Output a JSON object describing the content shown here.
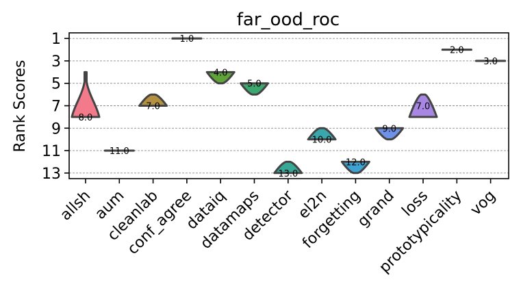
{
  "chart_data": {
    "type": "violin",
    "title": "far_ood_roc",
    "xlabel": "",
    "ylabel": "Rank Scores",
    "ylim": [
      13.5,
      0.5
    ],
    "yticks": [
      1,
      3,
      5,
      7,
      9,
      11,
      13
    ],
    "grid": "y-dashed",
    "categories": [
      "allsh",
      "aum",
      "cleanlab",
      "conf_agree",
      "dataiq",
      "datamaps",
      "detector",
      "el2n",
      "forgetting",
      "grand",
      "loss",
      "prototypicality",
      "vog"
    ],
    "series": [
      {
        "category": "allsh",
        "median": 8.0,
        "median_label": "8.0",
        "min": 4,
        "max": 8,
        "color": "#f37a8a"
      },
      {
        "category": "aum",
        "median": 11.0,
        "median_label": "11.0",
        "min": 11,
        "max": 11,
        "color": "#ce8a37"
      },
      {
        "category": "cleanlab",
        "median": 7.0,
        "median_label": "7.0",
        "min": 6,
        "max": 7,
        "color": "#b39140"
      },
      {
        "category": "conf_agree",
        "median": 1.0,
        "median_label": "1.0",
        "min": 1,
        "max": 1,
        "color": "#9b9a36"
      },
      {
        "category": "dataiq",
        "median": 4.0,
        "median_label": "4.0",
        "min": 4,
        "max": 5,
        "color": "#5fa339"
      },
      {
        "category": "datamaps",
        "median": 5.0,
        "median_label": "5.0",
        "min": 5,
        "max": 6,
        "color": "#3ea66f"
      },
      {
        "category": "detector",
        "median": 13.0,
        "median_label": "13.0",
        "min": 12,
        "max": 13,
        "color": "#38a896"
      },
      {
        "category": "el2n",
        "median": 10.0,
        "median_label": "10.0",
        "min": 9,
        "max": 10,
        "color": "#3aa6ae"
      },
      {
        "category": "forgetting",
        "median": 12.0,
        "median_label": "12.0",
        "min": 12,
        "max": 13,
        "color": "#3ea3d2"
      },
      {
        "category": "grand",
        "median": 9.0,
        "median_label": "9.0",
        "min": 9,
        "max": 10,
        "color": "#6f92e8"
      },
      {
        "category": "loss",
        "median": 7.0,
        "median_label": "7.0",
        "min": 6,
        "max": 8,
        "color": "#a887e3"
      },
      {
        "category": "prototypicality",
        "median": 2.0,
        "median_label": "2.0",
        "min": 2,
        "max": 2,
        "color": "#dd7ad6"
      },
      {
        "category": "vog",
        "median": 3.0,
        "median_label": "3.0",
        "min": 3,
        "max": 3,
        "color": "#ef78b0"
      }
    ]
  }
}
